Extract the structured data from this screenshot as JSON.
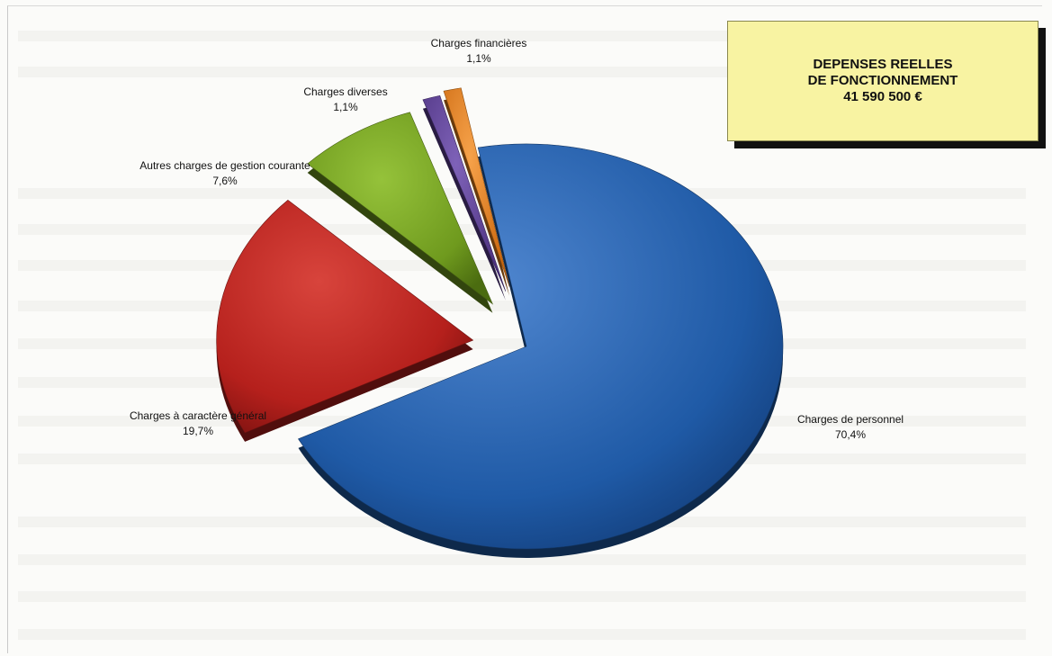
{
  "chart_data": {
    "type": "pie",
    "title": [
      "DEPENSES REELLES",
      "DE FONCTIONNEMENT",
      "41 590 500 €"
    ],
    "slices": [
      {
        "name": "Charges de personnel",
        "value": 70.4,
        "label": "70,4%",
        "color": "#1f5aa6"
      },
      {
        "name": "Charges à caractère général",
        "value": 19.7,
        "label": "19,7%",
        "color": "#b5201c"
      },
      {
        "name": "Autres charges de gestion courante",
        "value": 7.6,
        "label": "7,6%",
        "color": "#6f9a1e"
      },
      {
        "name": "Charges diverses",
        "value": 1.1,
        "label": "1,1%",
        "color": "#5b3e92"
      },
      {
        "name": "Charges financières",
        "value": 1.1,
        "label": "1,1%",
        "color": "#e8801a"
      }
    ],
    "legend": "none",
    "exploded": true,
    "style": "3d"
  }
}
